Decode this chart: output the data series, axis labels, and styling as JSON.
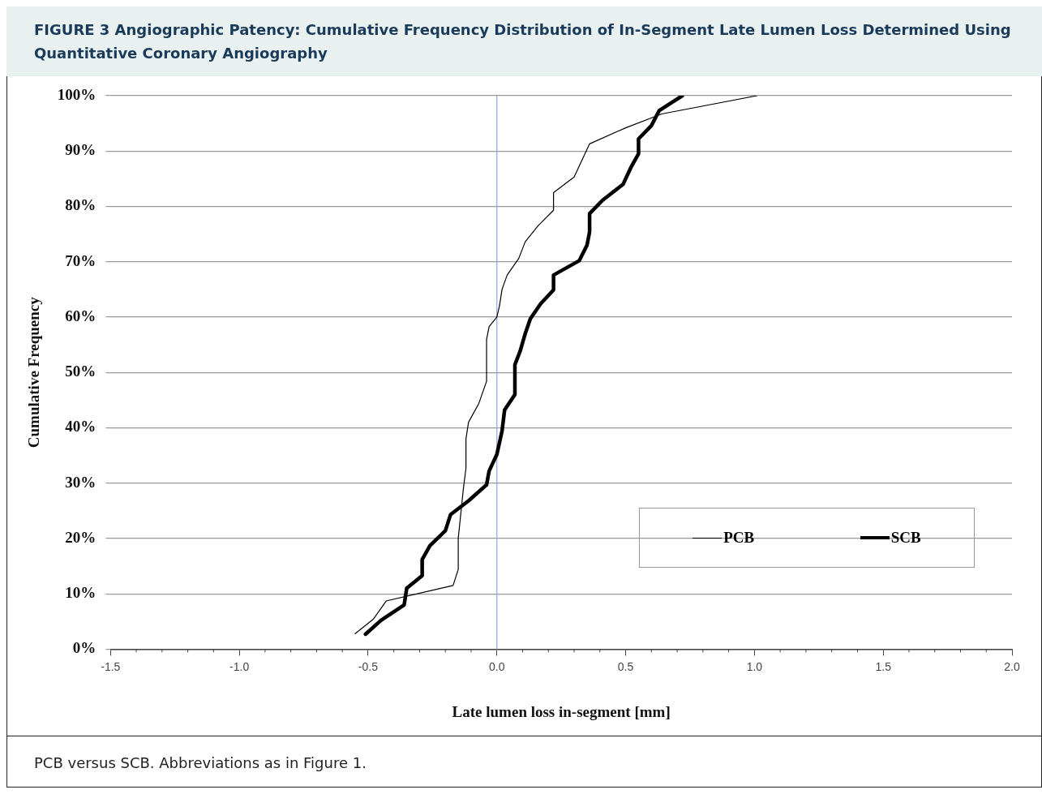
{
  "chart_data": {
    "type": "line",
    "title": "FIGURE 3  Angiographic Patency: Cumulative Frequency Distribution of In-Segment Late Lumen Loss Determined Using Quantitative Coronary Angiography",
    "xlabel": "Late lumen loss in-segment [mm]",
    "ylabel": "Cumulative Frequency",
    "annotations": [
      "PCB versus SCB. Abbreviations as in Figure 1."
    ],
    "series": [
      {
        "name": "PCB",
        "color": "#000000",
        "x": [
          -0.55,
          -0.48,
          -0.43,
          -0.17,
          -0.15,
          -0.15,
          -0.13,
          -0.12,
          -0.12,
          -0.11,
          -0.07,
          -0.04,
          -0.04,
          -0.03,
          0,
          0.01,
          0.02,
          0.04,
          0.085,
          0.11,
          0.16,
          0.22,
          0.22,
          0.3,
          0.36,
          0.5,
          0.64,
          1.01
        ],
        "values": [
          2.8,
          5.4,
          8.7,
          11.5,
          14.4,
          20,
          29,
          32.7,
          38,
          41,
          44.4,
          48.4,
          56,
          58.3,
          60,
          62,
          65,
          67.6,
          70.6,
          73.6,
          76.5,
          79.3,
          82.5,
          85.3,
          91.3,
          94.2,
          96.7,
          100
        ]
      },
      {
        "name": "SCB",
        "color": "#000000",
        "x": [
          -0.51,
          -0.45,
          -0.36,
          -0.35,
          -0.29,
          -0.29,
          -0.26,
          -0.2,
          -0.18,
          -0.11,
          -0.04,
          -0.03,
          0,
          0.02,
          0.03,
          0.07,
          0.07,
          0.09,
          0.11,
          0.13,
          0.17,
          0.22,
          0.22,
          0.32,
          0.35,
          0.36,
          0.36,
          0.41,
          0.49,
          0.52,
          0.55,
          0.55,
          0.6,
          0.63,
          0.72
        ],
        "values": [
          2.7,
          5.2,
          8,
          11,
          13.3,
          16.2,
          18.7,
          21.4,
          24.3,
          26.8,
          29.7,
          32.2,
          35.2,
          39.4,
          43.2,
          46,
          51.4,
          53.8,
          57,
          59.7,
          62.4,
          64.9,
          67.6,
          70.2,
          73,
          75.4,
          78.7,
          81.1,
          84,
          87,
          89.5,
          92.2,
          94.6,
          97.3,
          100
        ]
      }
    ],
    "xlim": [
      -1.5,
      2.0
    ],
    "xticks": [
      {
        "value": -1.5,
        "label": "-1.5"
      },
      {
        "value": -1.0,
        "label": "-1.0"
      },
      {
        "value": -0.5,
        "label": "-0.5"
      },
      {
        "value": 0,
        "label": "0.0"
      },
      {
        "value": 0.5,
        "label": "0.5"
      },
      {
        "value": 1.0,
        "label": "1.0"
      },
      {
        "value": 1.5,
        "label": "1.5"
      },
      {
        "value": 2.0,
        "label": "2.0"
      }
    ],
    "ylim": [
      0,
      100
    ],
    "yticks": [
      {
        "value": 0,
        "label": "0%"
      },
      {
        "value": 10,
        "label": "10%"
      },
      {
        "value": 20,
        "label": "20%"
      },
      {
        "value": 30,
        "label": "30%"
      },
      {
        "value": 40,
        "label": "40%"
      },
      {
        "value": 50,
        "label": "50%"
      },
      {
        "value": 60,
        "label": "60%"
      },
      {
        "value": 70,
        "label": "70%"
      },
      {
        "value": 80,
        "label": "80%"
      },
      {
        "value": 90,
        "label": "90%"
      },
      {
        "value": 100,
        "label": "100%"
      }
    ],
    "ref_lines": [
      {
        "axis": "x",
        "value": 0,
        "color": "#8ea9db"
      }
    ],
    "grid": "y",
    "legend": "bottom right",
    "marker": "none",
    "line_style": "solid"
  }
}
